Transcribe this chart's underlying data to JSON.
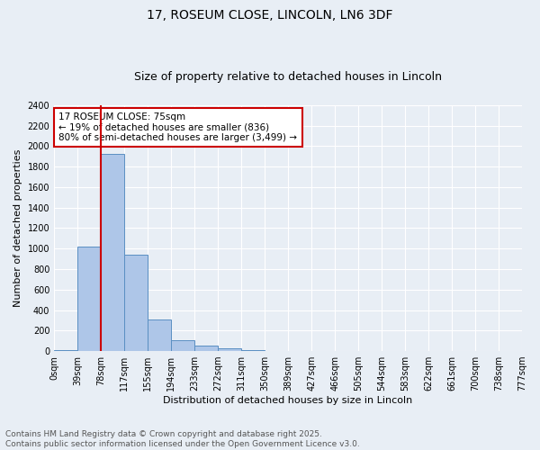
{
  "title": "17, ROSEUM CLOSE, LINCOLN, LN6 3DF",
  "subtitle": "Size of property relative to detached houses in Lincoln",
  "xlabel": "Distribution of detached houses by size in Lincoln",
  "ylabel": "Number of detached properties",
  "bins": [
    "0sqm",
    "39sqm",
    "78sqm",
    "117sqm",
    "155sqm",
    "194sqm",
    "233sqm",
    "272sqm",
    "311sqm",
    "350sqm",
    "389sqm",
    "427sqm",
    "466sqm",
    "505sqm",
    "544sqm",
    "583sqm",
    "622sqm",
    "661sqm",
    "700sqm",
    "738sqm",
    "777sqm"
  ],
  "values": [
    10,
    1020,
    1920,
    940,
    310,
    110,
    55,
    28,
    10,
    0,
    0,
    0,
    0,
    0,
    0,
    0,
    0,
    0,
    0,
    0
  ],
  "bar_color": "#aec6e8",
  "bar_edge_color": "#5a8fc2",
  "vline_x": 2,
  "vline_color": "#cc0000",
  "annotation_text": "17 ROSEUM CLOSE: 75sqm\n← 19% of detached houses are smaller (836)\n80% of semi-detached houses are larger (3,499) →",
  "annotation_box_color": "#ffffff",
  "annotation_box_edge": "#cc0000",
  "ylim": [
    0,
    2400
  ],
  "yticks": [
    0,
    200,
    400,
    600,
    800,
    1000,
    1200,
    1400,
    1600,
    1800,
    2000,
    2200,
    2400
  ],
  "background_color": "#e8eef5",
  "grid_color": "#ffffff",
  "footer_line1": "Contains HM Land Registry data © Crown copyright and database right 2025.",
  "footer_line2": "Contains public sector information licensed under the Open Government Licence v3.0.",
  "title_fontsize": 10,
  "subtitle_fontsize": 9,
  "axis_label_fontsize": 8,
  "tick_fontsize": 7,
  "footer_fontsize": 6.5
}
